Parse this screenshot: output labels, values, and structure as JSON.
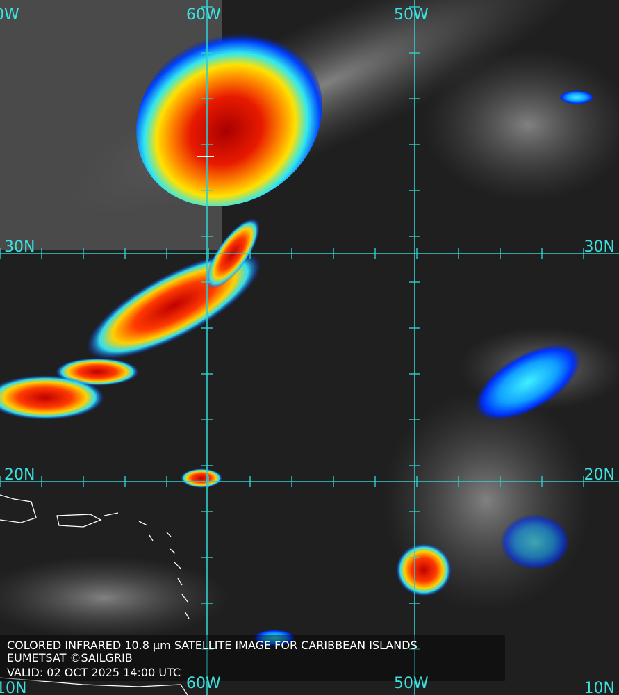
{
  "grid_labels": {
    "top": [
      "0W",
      "60W",
      "50W"
    ],
    "left": [
      "30N",
      "20N"
    ],
    "right": [
      "30N",
      "20N"
    ],
    "bottom": [
      "10N",
      "60W",
      "50W",
      "10N"
    ]
  },
  "caption": [
    "COLORED INFRARED 10.8 µm SATELLITE IMAGE FOR CARIBBEAN ISLANDS",
    "EUMETSAT ©SAILGRIB",
    "VALID:  02 OCT 2025 14:00 UTC"
  ]
}
